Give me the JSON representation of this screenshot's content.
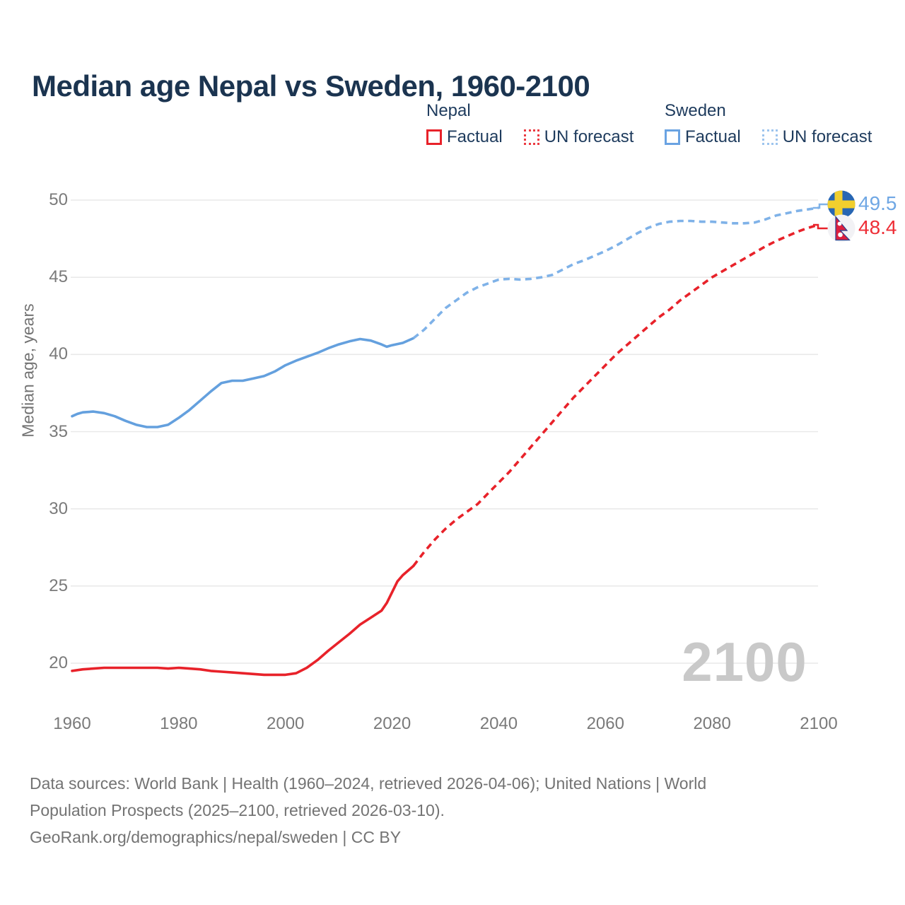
{
  "header": {
    "title": "Median age Nepal vs Sweden, 1960-2100"
  },
  "legend": {
    "groups": [
      {
        "label": "Nepal",
        "items": [
          {
            "label": "Factual",
            "style": "solid",
            "color": "#e8222a"
          },
          {
            "label": "UN forecast",
            "style": "dotted",
            "color": "#ec3b42"
          }
        ]
      },
      {
        "label": "Sweden",
        "items": [
          {
            "label": "Factual",
            "style": "solid",
            "color": "#6aa3e2"
          },
          {
            "label": "UN forecast",
            "style": "dotted",
            "color": "#9dc4ee"
          }
        ]
      }
    ]
  },
  "chart_data": {
    "type": "line",
    "title": "Median age Nepal vs Sweden, 1960-2100",
    "xlabel": "",
    "ylabel": "Median age, years",
    "x_range": [
      1960,
      2100
    ],
    "ylim": [
      17.5,
      51
    ],
    "xticks": [
      1960,
      1980,
      2000,
      2020,
      2040,
      2060,
      2080,
      2100
    ],
    "yticks": [
      20,
      25,
      30,
      35,
      40,
      45,
      50
    ],
    "grid": "horizontal",
    "legend_position": "top-right",
    "watermark": "2100",
    "series": [
      {
        "name": "Sweden Factual",
        "style": "solid",
        "color": "#64a0de",
        "points": [
          [
            1960,
            36.0
          ],
          [
            1961,
            36.15
          ],
          [
            1962,
            36.25
          ],
          [
            1964,
            36.3
          ],
          [
            1966,
            36.2
          ],
          [
            1968,
            36.0
          ],
          [
            1970,
            35.7
          ],
          [
            1972,
            35.45
          ],
          [
            1974,
            35.3
          ],
          [
            1976,
            35.3
          ],
          [
            1978,
            35.45
          ],
          [
            1980,
            35.9
          ],
          [
            1982,
            36.4
          ],
          [
            1984,
            37.0
          ],
          [
            1986,
            37.6
          ],
          [
            1988,
            38.15
          ],
          [
            1990,
            38.3
          ],
          [
            1992,
            38.3
          ],
          [
            1994,
            38.45
          ],
          [
            1996,
            38.6
          ],
          [
            1998,
            38.9
          ],
          [
            2000,
            39.3
          ],
          [
            2002,
            39.6
          ],
          [
            2004,
            39.85
          ],
          [
            2006,
            40.1
          ],
          [
            2008,
            40.4
          ],
          [
            2010,
            40.65
          ],
          [
            2012,
            40.85
          ],
          [
            2014,
            41.0
          ],
          [
            2016,
            40.9
          ],
          [
            2018,
            40.65
          ],
          [
            2019,
            40.5
          ],
          [
            2020,
            40.6
          ],
          [
            2022,
            40.75
          ],
          [
            2024,
            41.05
          ]
        ]
      },
      {
        "name": "Sweden UN forecast",
        "style": "dashed",
        "color": "#7fb2e8",
        "points": [
          [
            2024,
            41.05
          ],
          [
            2026,
            41.6
          ],
          [
            2028,
            42.3
          ],
          [
            2030,
            43.0
          ],
          [
            2032,
            43.5
          ],
          [
            2034,
            44.0
          ],
          [
            2036,
            44.35
          ],
          [
            2038,
            44.6
          ],
          [
            2040,
            44.85
          ],
          [
            2042,
            44.9
          ],
          [
            2044,
            44.85
          ],
          [
            2046,
            44.9
          ],
          [
            2048,
            45.0
          ],
          [
            2050,
            45.15
          ],
          [
            2052,
            45.5
          ],
          [
            2054,
            45.85
          ],
          [
            2056,
            46.1
          ],
          [
            2058,
            46.4
          ],
          [
            2060,
            46.7
          ],
          [
            2062,
            47.05
          ],
          [
            2064,
            47.45
          ],
          [
            2066,
            47.85
          ],
          [
            2068,
            48.2
          ],
          [
            2070,
            48.45
          ],
          [
            2072,
            48.6
          ],
          [
            2074,
            48.65
          ],
          [
            2076,
            48.65
          ],
          [
            2078,
            48.6
          ],
          [
            2080,
            48.6
          ],
          [
            2082,
            48.55
          ],
          [
            2084,
            48.5
          ],
          [
            2086,
            48.5
          ],
          [
            2088,
            48.55
          ],
          [
            2090,
            48.75
          ],
          [
            2092,
            49.0
          ],
          [
            2094,
            49.15
          ],
          [
            2096,
            49.3
          ],
          [
            2098,
            49.4
          ],
          [
            2100,
            49.5
          ]
        ]
      },
      {
        "name": "Nepal Factual",
        "style": "solid",
        "color": "#e8222a",
        "points": [
          [
            1960,
            19.5
          ],
          [
            1962,
            19.6
          ],
          [
            1964,
            19.65
          ],
          [
            1966,
            19.7
          ],
          [
            1968,
            19.7
          ],
          [
            1970,
            19.7
          ],
          [
            1972,
            19.7
          ],
          [
            1974,
            19.7
          ],
          [
            1976,
            19.7
          ],
          [
            1978,
            19.65
          ],
          [
            1980,
            19.7
          ],
          [
            1982,
            19.65
          ],
          [
            1984,
            19.6
          ],
          [
            1986,
            19.5
          ],
          [
            1988,
            19.45
          ],
          [
            1990,
            19.4
          ],
          [
            1992,
            19.35
          ],
          [
            1994,
            19.3
          ],
          [
            1996,
            19.25
          ],
          [
            1998,
            19.25
          ],
          [
            2000,
            19.25
          ],
          [
            2002,
            19.35
          ],
          [
            2004,
            19.7
          ],
          [
            2006,
            20.2
          ],
          [
            2008,
            20.8
          ],
          [
            2010,
            21.35
          ],
          [
            2012,
            21.9
          ],
          [
            2014,
            22.5
          ],
          [
            2016,
            22.95
          ],
          [
            2018,
            23.4
          ],
          [
            2019,
            23.9
          ],
          [
            2020,
            24.6
          ],
          [
            2021,
            25.3
          ],
          [
            2022,
            25.7
          ],
          [
            2023,
            26.0
          ],
          [
            2024,
            26.3
          ]
        ]
      },
      {
        "name": "Nepal UN forecast",
        "style": "dashed",
        "color": "#e8222a",
        "points": [
          [
            2024,
            26.3
          ],
          [
            2026,
            27.2
          ],
          [
            2028,
            28.0
          ],
          [
            2030,
            28.7
          ],
          [
            2032,
            29.3
          ],
          [
            2034,
            29.8
          ],
          [
            2036,
            30.3
          ],
          [
            2038,
            31.0
          ],
          [
            2040,
            31.7
          ],
          [
            2042,
            32.4
          ],
          [
            2044,
            33.2
          ],
          [
            2046,
            34.0
          ],
          [
            2048,
            34.8
          ],
          [
            2050,
            35.6
          ],
          [
            2052,
            36.4
          ],
          [
            2054,
            37.2
          ],
          [
            2056,
            37.9
          ],
          [
            2058,
            38.6
          ],
          [
            2060,
            39.3
          ],
          [
            2062,
            40.0
          ],
          [
            2064,
            40.6
          ],
          [
            2066,
            41.2
          ],
          [
            2068,
            41.8
          ],
          [
            2070,
            42.4
          ],
          [
            2072,
            42.9
          ],
          [
            2074,
            43.5
          ],
          [
            2076,
            44.0
          ],
          [
            2078,
            44.5
          ],
          [
            2080,
            45.0
          ],
          [
            2082,
            45.4
          ],
          [
            2084,
            45.8
          ],
          [
            2086,
            46.2
          ],
          [
            2088,
            46.6
          ],
          [
            2090,
            47.0
          ],
          [
            2092,
            47.35
          ],
          [
            2094,
            47.65
          ],
          [
            2096,
            47.95
          ],
          [
            2098,
            48.2
          ],
          [
            2100,
            48.4
          ]
        ]
      }
    ],
    "end_labels": [
      {
        "series": "Sweden",
        "value": "49.5",
        "color": "#6fa7e4",
        "flag": "sweden"
      },
      {
        "series": "Nepal",
        "value": "48.4",
        "color": "#ee2e36",
        "flag": "nepal"
      }
    ]
  },
  "footer": {
    "lines": [
      "Data sources: World Bank | Health (1960–2024, retrieved 2026-04-06); United Nations | World",
      "Population Prospects (2025–2100, retrieved 2026-03-10).",
      "GeoRank.org/demographics/nepal/sweden | CC BY"
    ]
  }
}
